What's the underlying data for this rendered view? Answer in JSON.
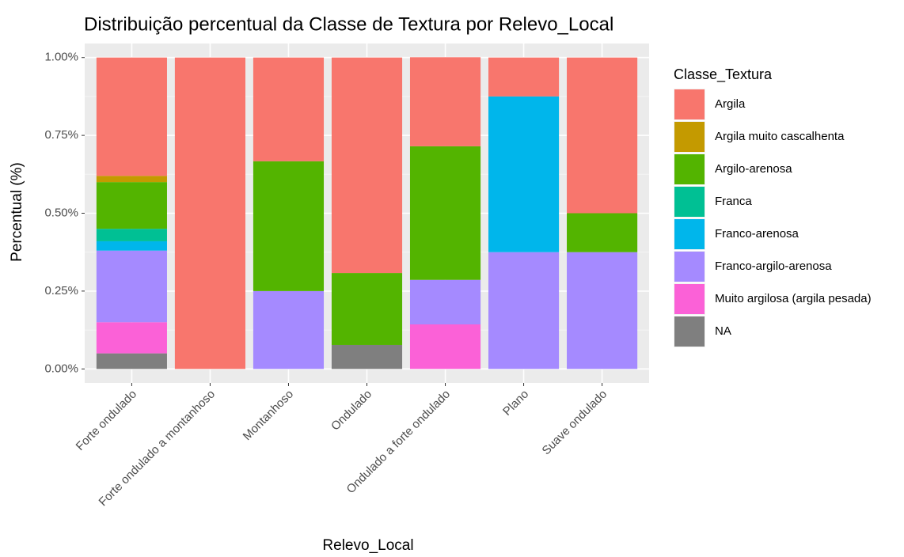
{
  "chart_data": {
    "type": "stacked_bar",
    "title": "Distribuição percentual da Classe de Textura por Relevo_Local",
    "x_label": "Relevo_Local",
    "y_label": "Percentual (%)",
    "legend_title": "Classe_Textura",
    "legend_position": "right",
    "grid": true,
    "categories": [
      "Forte ondulado",
      "Forte ondulado a montanhoso",
      "Montanhoso",
      "Ondulado",
      "Ondulado a forte ondulado",
      "Plano",
      "Suave ondulado"
    ],
    "ylim": [
      -0.045,
      1.045
    ],
    "yticks": [
      {
        "value": 0,
        "label": "0.00%"
      },
      {
        "value": 0.25,
        "label": "0.25%"
      },
      {
        "value": 0.5,
        "label": "0.50%"
      },
      {
        "value": 0.75,
        "label": "0.75%"
      },
      {
        "value": 1,
        "label": "1.00%"
      }
    ],
    "series": [
      {
        "name": "Argila",
        "color": "#F8766D",
        "values": [
          0.38,
          1,
          0.333,
          0.692,
          0.286,
          0.125,
          0.5
        ]
      },
      {
        "name": "Argila muito cascalhenta",
        "color": "#C49A00",
        "values": [
          0.02,
          0,
          0,
          0,
          0,
          0,
          0
        ]
      },
      {
        "name": "Argilo-arenosa",
        "color": "#53B400",
        "values": [
          0.15,
          0,
          0.417,
          0.231,
          0.429,
          0,
          0.125
        ]
      },
      {
        "name": "Franca",
        "color": "#00C094",
        "values": [
          0.04,
          0,
          0,
          0,
          0,
          0,
          0
        ]
      },
      {
        "name": "Franco-arenosa",
        "color": "#00B6EB",
        "values": [
          0.03,
          0,
          0,
          0,
          0,
          0.5,
          0
        ]
      },
      {
        "name": "Franco-argilo-arenosa",
        "color": "#A58AFF",
        "values": [
          0.23,
          0,
          0.25,
          0,
          0.143,
          0.375,
          0.375
        ]
      },
      {
        "name": "Muito argilosa (argila pesada)",
        "color": "#FB61D7",
        "values": [
          0.1,
          0,
          0,
          0,
          0.143,
          0,
          0
        ]
      },
      {
        "name": "NA",
        "color": "#7F7F7F",
        "values": [
          0.05,
          0,
          0,
          0.077,
          0,
          0,
          0
        ]
      }
    ]
  }
}
